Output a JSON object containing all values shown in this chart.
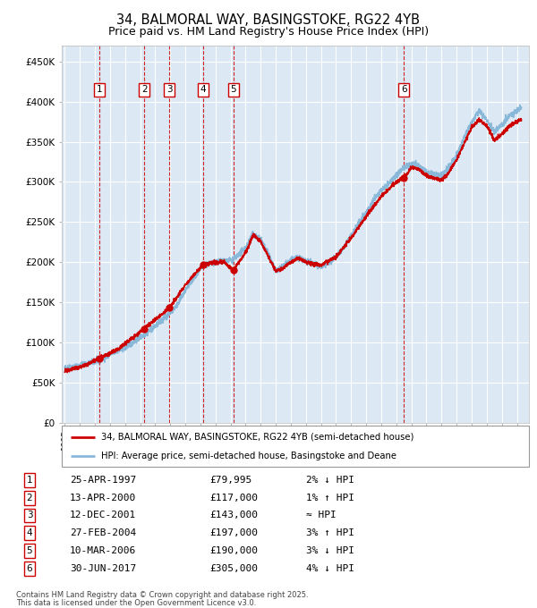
{
  "title_line1": "34, BALMORAL WAY, BASINGSTOKE, RG22 4YB",
  "title_line2": "Price paid vs. HM Land Registry's House Price Index (HPI)",
  "title_fontsize": 10.5,
  "subtitle_fontsize": 9,
  "plot_bg_color": "#dce9f5",
  "fig_bg_color": "#ffffff",
  "red_line_color": "#cc0000",
  "blue_line_color": "#89b8d8",
  "grid_color": "#ffffff",
  "ylim": [
    0,
    470000
  ],
  "yticks": [
    0,
    50000,
    100000,
    150000,
    200000,
    250000,
    300000,
    350000,
    400000,
    450000
  ],
  "ytick_labels": [
    "£0",
    "£50K",
    "£100K",
    "£150K",
    "£200K",
    "£250K",
    "£300K",
    "£350K",
    "£400K",
    "£450K"
  ],
  "xlim_start": 1994.8,
  "xlim_end": 2025.8,
  "xtick_years": [
    1995,
    1996,
    1997,
    1998,
    1999,
    2000,
    2001,
    2002,
    2003,
    2004,
    2005,
    2006,
    2007,
    2008,
    2009,
    2010,
    2011,
    2012,
    2013,
    2014,
    2015,
    2016,
    2017,
    2018,
    2019,
    2020,
    2021,
    2022,
    2023,
    2024,
    2025
  ],
  "sales": [
    {
      "label": "1",
      "date": "25-APR-1997",
      "year": 1997.31,
      "price": 79995,
      "pct": "2%",
      "dir": "↓",
      "hpi_note": "HPI"
    },
    {
      "label": "2",
      "date": "13-APR-2000",
      "year": 2000.28,
      "price": 117000,
      "pct": "1%",
      "dir": "↑",
      "hpi_note": "HPI"
    },
    {
      "label": "3",
      "date": "12-DEC-2001",
      "year": 2001.95,
      "price": 143000,
      "pct": "≈",
      "dir": "",
      "hpi_note": "HPI"
    },
    {
      "label": "4",
      "date": "27-FEB-2004",
      "year": 2004.16,
      "price": 197000,
      "pct": "3%",
      "dir": "↑",
      "hpi_note": "HPI"
    },
    {
      "label": "5",
      "date": "10-MAR-2006",
      "year": 2006.19,
      "price": 190000,
      "pct": "3%",
      "dir": "↓",
      "hpi_note": "HPI"
    },
    {
      "label": "6",
      "date": "30-JUN-2017",
      "year": 2017.5,
      "price": 305000,
      "pct": "4%",
      "dir": "↓",
      "hpi_note": "HPI"
    }
  ],
  "legend_line1": "34, BALMORAL WAY, BASINGSTOKE, RG22 4YB (semi-detached house)",
  "legend_line2": "HPI: Average price, semi-detached house, Basingstoke and Deane",
  "footer_line1": "Contains HM Land Registry data © Crown copyright and database right 2025.",
  "footer_line2": "This data is licensed under the Open Government Licence v3.0.",
  "hpi_anchors": [
    [
      1995.0,
      68000
    ],
    [
      1996.0,
      71000
    ],
    [
      1997.3,
      77000
    ],
    [
      1998.0,
      85000
    ],
    [
      1999.0,
      93000
    ],
    [
      2000.3,
      110000
    ],
    [
      2001.0,
      120000
    ],
    [
      2001.95,
      136000
    ],
    [
      2002.5,
      148000
    ],
    [
      2003.0,
      165000
    ],
    [
      2004.2,
      196000
    ],
    [
      2005.0,
      200000
    ],
    [
      2006.2,
      203000
    ],
    [
      2007.0,
      218000
    ],
    [
      2007.5,
      235000
    ],
    [
      2008.0,
      228000
    ],
    [
      2008.5,
      212000
    ],
    [
      2009.0,
      188000
    ],
    [
      2009.5,
      195000
    ],
    [
      2010.0,
      202000
    ],
    [
      2010.5,
      206000
    ],
    [
      2011.0,
      202000
    ],
    [
      2011.5,
      197000
    ],
    [
      2012.0,
      194000
    ],
    [
      2012.5,
      199000
    ],
    [
      2013.0,
      207000
    ],
    [
      2013.5,
      218000
    ],
    [
      2014.0,
      233000
    ],
    [
      2014.5,
      248000
    ],
    [
      2015.0,
      262000
    ],
    [
      2015.5,
      278000
    ],
    [
      2016.0,
      290000
    ],
    [
      2016.5,
      298000
    ],
    [
      2017.0,
      308000
    ],
    [
      2017.5,
      318000
    ],
    [
      2018.0,
      323000
    ],
    [
      2018.5,
      320000
    ],
    [
      2019.0,
      313000
    ],
    [
      2019.5,
      310000
    ],
    [
      2020.0,
      308000
    ],
    [
      2020.5,
      318000
    ],
    [
      2021.0,
      333000
    ],
    [
      2021.5,
      355000
    ],
    [
      2022.0,
      375000
    ],
    [
      2022.5,
      388000
    ],
    [
      2023.0,
      378000
    ],
    [
      2023.5,
      362000
    ],
    [
      2024.0,
      372000
    ],
    [
      2024.5,
      382000
    ],
    [
      2025.3,
      393000
    ]
  ],
  "prop_anchors": [
    [
      1995.0,
      65000
    ],
    [
      1996.0,
      69000
    ],
    [
      1997.3,
      79995
    ],
    [
      1998.5,
      91000
    ],
    [
      2000.28,
      117000
    ],
    [
      2001.95,
      143000
    ],
    [
      2003.0,
      172000
    ],
    [
      2004.16,
      197000
    ],
    [
      2005.5,
      201000
    ],
    [
      2006.19,
      190000
    ],
    [
      2007.0,
      212000
    ],
    [
      2007.5,
      234000
    ],
    [
      2008.0,
      226000
    ],
    [
      2009.0,
      189000
    ],
    [
      2009.5,
      193000
    ],
    [
      2010.0,
      200000
    ],
    [
      2010.5,
      205000
    ],
    [
      2011.0,
      200000
    ],
    [
      2012.0,
      196000
    ],
    [
      2013.0,
      207000
    ],
    [
      2014.0,
      230000
    ],
    [
      2015.0,
      257000
    ],
    [
      2016.0,
      282000
    ],
    [
      2017.0,
      300000
    ],
    [
      2017.5,
      305000
    ],
    [
      2018.0,
      318000
    ],
    [
      2018.5,
      316000
    ],
    [
      2019.0,
      308000
    ],
    [
      2019.5,
      305000
    ],
    [
      2020.0,
      302000
    ],
    [
      2020.5,
      312000
    ],
    [
      2021.0,
      328000
    ],
    [
      2021.5,
      348000
    ],
    [
      2022.0,
      368000
    ],
    [
      2022.5,
      378000
    ],
    [
      2023.0,
      370000
    ],
    [
      2023.5,
      352000
    ],
    [
      2024.0,
      360000
    ],
    [
      2024.5,
      370000
    ],
    [
      2025.3,
      378000
    ]
  ]
}
